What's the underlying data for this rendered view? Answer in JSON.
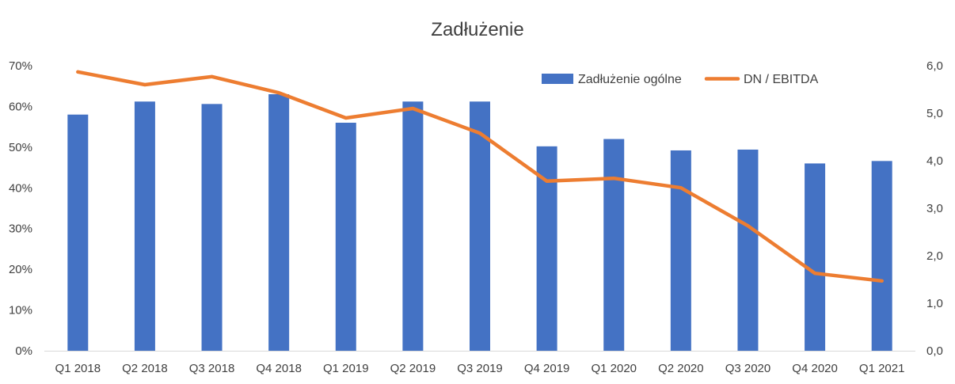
{
  "chart_data": {
    "type": "bar",
    "title": "Zadłużenie",
    "categories": [
      "Q1 2018",
      "Q2 2018",
      "Q3 2018",
      "Q4 2018",
      "Q1 2019",
      "Q2 2019",
      "Q3 2019",
      "Q4 2019",
      "Q1 2020",
      "Q2 2020",
      "Q3 2020",
      "Q4 2020",
      "Q1 2021"
    ],
    "series": [
      {
        "name": "Zadłużenie ogólne",
        "type": "bar",
        "axis": "left",
        "color": "#4472C4",
        "values": [
          0.58,
          0.612,
          0.606,
          0.63,
          0.56,
          0.612,
          0.612,
          0.502,
          0.52,
          0.492,
          0.494,
          0.46,
          0.466
        ]
      },
      {
        "name": "DN / EBITDA",
        "type": "line",
        "axis": "right",
        "color": "#ED7D31",
        "values": [
          5.87,
          5.6,
          5.77,
          5.43,
          4.9,
          5.1,
          4.58,
          3.57,
          3.63,
          3.43,
          2.63,
          1.63,
          1.47
        ]
      }
    ],
    "y_left": {
      "lim": [
        0,
        0.7
      ],
      "ticks": [
        0,
        0.1,
        0.2,
        0.3,
        0.4,
        0.5,
        0.6,
        0.7
      ],
      "tick_labels": [
        "0%",
        "10%",
        "20%",
        "30%",
        "40%",
        "50%",
        "60%",
        "70%"
      ]
    },
    "y_right": {
      "lim": [
        0,
        6
      ],
      "ticks": [
        0,
        1,
        2,
        3,
        4,
        5,
        6
      ],
      "tick_labels": [
        "0,0",
        "1,0",
        "2,0",
        "3,0",
        "4,0",
        "5,0",
        "6,0"
      ]
    },
    "grid": false,
    "legend_position": "top-right"
  }
}
